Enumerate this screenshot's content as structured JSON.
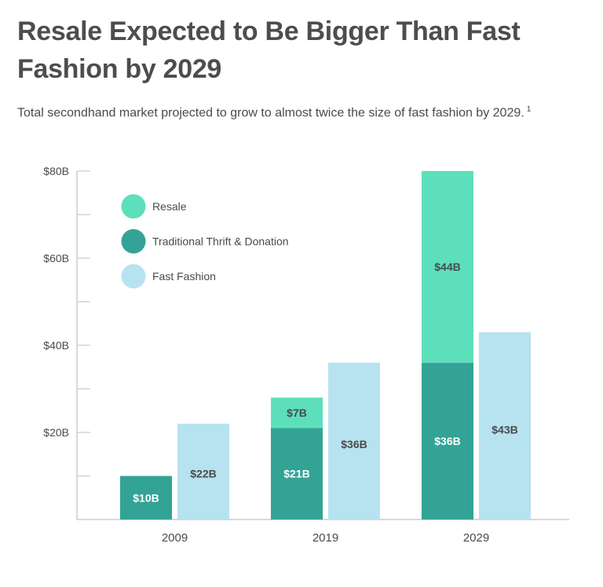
{
  "header": {
    "title": "Resale Expected to Be Bigger Than Fast Fashion by 2029",
    "subtitle": "Total secondhand market projected to grow to almost twice the size of fast fashion by 2029.",
    "footnote_marker": "1"
  },
  "colors": {
    "resale": "#5ddfbc",
    "thrift": "#33a396",
    "fast_fashion": "#b7e2f0",
    "axis": "#cccccc",
    "label_dark": "#4a4a4a",
    "label_light": "#ffffff"
  },
  "chart_data": {
    "type": "bar",
    "title": "Resale Expected to Be Bigger Than Fast Fashion by 2029",
    "subtitle": "Total secondhand market projected to grow to almost twice the size of fast fashion by 2029.",
    "xlabel": "",
    "ylabel": "",
    "categories": [
      "2009",
      "2019",
      "2029"
    ],
    "series": [
      {
        "name": "Resale",
        "key": "resale",
        "stack": "secondhand",
        "values": [
          0,
          7,
          44
        ],
        "labels": [
          "",
          "$7B",
          "$44B"
        ]
      },
      {
        "name": "Traditional Thrift & Donation",
        "key": "thrift",
        "stack": "secondhand",
        "values": [
          10,
          21,
          36
        ],
        "labels": [
          "$10B",
          "$21B",
          "$36B"
        ]
      },
      {
        "name": "Fast Fashion",
        "key": "fast_fashion",
        "stack": "fast",
        "values": [
          22,
          36,
          43
        ],
        "labels": [
          "$22B",
          "$36B",
          "$43B"
        ]
      }
    ],
    "ylim": [
      0,
      80
    ],
    "yticks": [
      0,
      10,
      20,
      30,
      40,
      50,
      60,
      70,
      80
    ],
    "ytick_labels": {
      "20": "$20B",
      "40": "$40B",
      "60": "$60B",
      "80": "$80B"
    },
    "grid": false,
    "legend": {
      "position": "top-left",
      "items": [
        {
          "label": "Resale",
          "key": "resale"
        },
        {
          "label": "Traditional Thrift & Donation",
          "key": "thrift"
        },
        {
          "label": "Fast Fashion",
          "key": "fast_fashion"
        }
      ]
    }
  }
}
